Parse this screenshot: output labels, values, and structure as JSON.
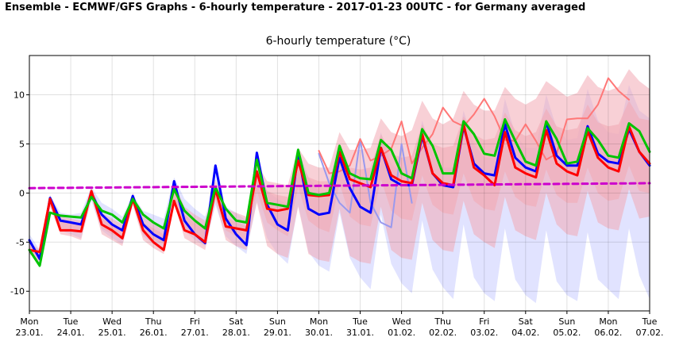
{
  "page": {
    "title": "Ensemble - ECMWF/GFS Graphs - 6-hourly temperature - 2017-01-23 00UTC - for Germany averaged"
  },
  "colors": {
    "gfs_spread": "#c8ccff",
    "ecmwf_spread": "#f2aab4",
    "gfs_main": "#0000ff",
    "ecmwf_main": "#ff0000",
    "green": "#00c400",
    "climate": "#cc00cc",
    "gfs_light": "#9999ee",
    "ecmwf_light": "#ff7777"
  },
  "chart_data": {
    "type": "line",
    "title": "6-hourly temperature (°C)",
    "xlabel": "",
    "ylabel": "",
    "xlim": [
      0,
      60
    ],
    "ylim": [
      -12,
      14
    ],
    "yticks": [
      -10,
      -5,
      0,
      5,
      10
    ],
    "grid": true,
    "legend": "none",
    "xtick_labels": [
      {
        "day": "Mon",
        "date": "23.01."
      },
      {
        "day": "Tue",
        "date": "24.01."
      },
      {
        "day": "Wed",
        "date": "25.01."
      },
      {
        "day": "Thu",
        "date": "26.01."
      },
      {
        "day": "Fri",
        "date": "27.01."
      },
      {
        "day": "Sat",
        "date": "28.01."
      },
      {
        "day": "Sun",
        "date": "29.01."
      },
      {
        "day": "Mon",
        "date": "30.01."
      },
      {
        "day": "Tue",
        "date": "31.01."
      },
      {
        "day": "Wed",
        "date": "01.02."
      },
      {
        "day": "Thu",
        "date": "02.02."
      },
      {
        "day": "Fri",
        "date": "03.02."
      },
      {
        "day": "Sat",
        "date": "04.02."
      },
      {
        "day": "Sun",
        "date": "05.02."
      },
      {
        "day": "Mon",
        "date": "06.02."
      },
      {
        "day": "Tue",
        "date": "07.02."
      }
    ],
    "bands": [
      {
        "id": "gfs-outer-spread",
        "color_key": "gfs_spread",
        "opacity": 0.55,
        "x_start": 0,
        "upper": [
          -4.2,
          -5.8,
          -0.2,
          -2.0,
          -2.2,
          -2.0,
          0.6,
          -1.0,
          -1.6,
          -2.4,
          -0.2,
          -1.8,
          -2.2,
          -2.6,
          1.6,
          -0.6,
          -1.6,
          -2.4,
          0.7,
          -1.4,
          -2.0,
          -2.8,
          3.2,
          0.2,
          -0.6,
          -1.2,
          4.6,
          1.6,
          0.2,
          -0.2,
          5.0,
          2.0,
          1.0,
          0.6,
          6.2,
          3.0,
          2.0,
          1.8,
          7.4,
          4.0,
          2.6,
          2.6,
          8.4,
          5.0,
          3.6,
          3.6,
          9.6,
          6.0,
          4.6,
          4.6,
          10.0,
          6.6,
          5.4,
          5.6,
          10.6,
          7.4,
          6.2,
          6.0,
          11.0,
          8.4,
          7.6
        ],
        "lower": [
          -5.6,
          -7.6,
          -1.2,
          -3.8,
          -4.2,
          -4.6,
          -0.8,
          -3.8,
          -4.6,
          -5.2,
          -1.2,
          -4.4,
          -5.2,
          -5.8,
          -0.8,
          -3.8,
          -4.8,
          -5.4,
          -1.2,
          -4.4,
          -5.4,
          -6.2,
          -0.8,
          -4.6,
          -6.2,
          -7.2,
          -1.2,
          -6.0,
          -7.4,
          -8.0,
          -2.0,
          -6.6,
          -8.6,
          -9.8,
          -2.2,
          -7.2,
          -9.2,
          -10.2,
          -2.8,
          -7.8,
          -9.6,
          -10.8,
          -3.2,
          -8.6,
          -10.2,
          -11.0,
          -3.6,
          -8.8,
          -10.4,
          -11.2,
          -3.8,
          -9.0,
          -10.4,
          -11.0,
          -4.0,
          -8.8,
          -9.8,
          -10.8,
          -3.6,
          -8.4,
          -10.8
        ]
      },
      {
        "id": "ecmwf-outer-spread",
        "color_key": "ecmwf_spread",
        "opacity": 0.55,
        "x_start": 0,
        "upper": [
          -5.0,
          -5.8,
          -0.2,
          -2.4,
          -2.6,
          -2.8,
          0.6,
          -2.0,
          -2.6,
          -3.2,
          0.0,
          -2.4,
          -3.0,
          -3.6,
          1.0,
          -1.4,
          -2.2,
          -2.8,
          1.4,
          -1.6,
          -2.0,
          -2.4,
          3.0,
          1.2,
          1.0,
          0.8,
          4.6,
          3.0,
          2.6,
          2.6,
          6.2,
          4.4,
          4.4,
          4.6,
          7.6,
          6.2,
          5.8,
          6.4,
          9.4,
          7.6,
          7.0,
          7.6,
          10.4,
          9.0,
          8.4,
          8.4,
          10.8,
          9.6,
          9.0,
          9.6,
          11.4,
          10.6,
          9.8,
          10.2,
          12.0,
          10.8,
          10.4,
          10.8,
          12.6,
          11.4,
          10.6
        ],
        "lower": [
          -6.2,
          -7.0,
          -1.4,
          -4.2,
          -4.4,
          -4.8,
          -0.4,
          -4.2,
          -4.8,
          -5.4,
          -1.2,
          -4.8,
          -5.6,
          -6.2,
          -1.0,
          -4.6,
          -5.2,
          -5.8,
          -0.8,
          -4.8,
          -5.4,
          -5.8,
          -1.0,
          -5.4,
          -6.2,
          -6.6,
          -1.4,
          -6.2,
          -6.8,
          -7.0,
          -1.6,
          -6.4,
          -7.0,
          -7.2,
          -1.4,
          -5.8,
          -6.6,
          -6.8,
          -1.0,
          -4.8,
          -5.8,
          -6.0,
          -0.8,
          -4.2,
          -5.0,
          -5.6,
          -0.4,
          -3.8,
          -4.4,
          -4.8,
          0.0,
          -3.2,
          -4.2,
          -4.4,
          0.2,
          -3.0,
          -3.6,
          -3.8,
          0.4,
          -2.6,
          -2.4
        ]
      },
      {
        "id": "ecmwf-inner-spread",
        "color_key": "ecmwf_spread",
        "opacity": 0.6,
        "x_start": 0,
        "upper": [
          -5.4,
          -6.2,
          -0.6,
          -2.8,
          -3.0,
          -3.2,
          0.3,
          -2.6,
          -3.2,
          -3.8,
          -0.4,
          -3.0,
          -3.6,
          -4.2,
          0.4,
          -2.2,
          -3.0,
          -3.6,
          0.6,
          -2.4,
          -3.0,
          -3.4,
          2.4,
          0.2,
          -0.2,
          -0.4,
          3.6,
          1.6,
          1.2,
          1.2,
          4.8,
          2.6,
          2.4,
          2.6,
          6.0,
          4.0,
          3.6,
          3.8,
          7.0,
          5.0,
          4.6,
          4.8,
          7.8,
          6.0,
          5.4,
          5.6,
          8.2,
          6.4,
          5.8,
          6.2,
          8.6,
          6.8,
          6.4,
          6.6,
          9.0,
          7.2,
          6.8,
          7.0,
          9.4,
          7.6,
          7.4
        ],
        "lower": [
          -5.8,
          -6.6,
          -1.0,
          -3.6,
          -3.8,
          -4.0,
          -0.2,
          -3.6,
          -4.2,
          -4.6,
          -0.8,
          -4.2,
          -4.8,
          -5.2,
          -0.6,
          -3.8,
          -4.4,
          -4.8,
          -0.4,
          -3.8,
          -4.4,
          -4.8,
          0.2,
          -3.0,
          -3.8,
          -4.4,
          0.6,
          -2.8,
          -3.6,
          -4.0,
          1.0,
          -2.4,
          -3.2,
          -3.4,
          1.4,
          -1.8,
          -2.6,
          -2.8,
          1.8,
          -1.2,
          -2.0,
          -2.2,
          2.0,
          -0.8,
          -1.6,
          -1.8,
          2.2,
          -0.4,
          -1.2,
          -1.4,
          2.4,
          -0.2,
          -1.0,
          -1.0,
          2.6,
          0.0,
          -0.8,
          -0.6,
          2.8,
          0.2,
          0.0
        ]
      }
    ],
    "series": [
      {
        "id": "gfs-control-light",
        "color_key": "gfs_light",
        "width": 2,
        "x_start": 28,
        "values": [
          4.0,
          1.0,
          -1.0,
          -2.0,
          5.5,
          -1.0,
          -3.0,
          -3.5,
          5.0,
          -1.0
        ]
      },
      {
        "id": "ecmwf-control-light",
        "color_key": "ecmwf_light",
        "width": 2,
        "x_start": 28,
        "values": [
          4.3,
          2.0,
          2.2,
          2.8,
          5.5,
          3.3,
          3.8,
          4.5,
          7.3,
          3.0,
          4.6,
          6.0,
          8.7,
          7.3,
          6.8,
          8.0,
          9.6,
          7.8,
          5.4,
          5.3,
          7.0,
          5.3,
          3.4,
          4.0,
          7.5,
          7.6,
          7.6,
          9.0,
          11.7,
          10.4,
          9.5
        ]
      },
      {
        "id": "gfs-main",
        "color_key": "gfs_main",
        "width": 3,
        "x_start": 0,
        "values": [
          -4.8,
          -6.7,
          -0.5,
          -2.8,
          -3.0,
          -3.2,
          0.0,
          -2.2,
          -3.2,
          -3.8,
          -0.3,
          -3.2,
          -4.2,
          -4.8,
          1.2,
          -2.8,
          -4.2,
          -5.1,
          2.8,
          -2.6,
          -4.2,
          -5.3,
          4.1,
          -1.2,
          -3.2,
          -3.8,
          4.0,
          -1.6,
          -2.2,
          -2.0,
          3.6,
          0.5,
          -1.4,
          -2.0,
          4.6,
          1.4,
          0.8,
          0.8,
          5.8,
          2.0,
          0.8,
          0.6,
          6.8,
          3.0,
          2.0,
          1.8,
          7.0,
          3.6,
          2.6,
          2.2,
          7.2,
          3.8,
          2.8,
          2.8,
          6.8,
          4.0,
          3.2,
          3.0,
          6.5,
          4.2,
          2.8
        ]
      },
      {
        "id": "ecmwf-main",
        "color_key": "ecmwf_main",
        "width": 3,
        "x_start": 0,
        "values": [
          -5.8,
          -6.0,
          -0.6,
          -3.8,
          -3.8,
          -3.9,
          0.2,
          -3.2,
          -3.8,
          -4.6,
          -0.6,
          -3.8,
          -5.0,
          -5.8,
          -0.8,
          -3.8,
          -4.2,
          -5.0,
          0.4,
          -3.4,
          -3.6,
          -3.8,
          2.2,
          -1.6,
          -1.8,
          -1.6,
          3.3,
          -0.2,
          -0.3,
          -0.2,
          4.2,
          1.4,
          1.0,
          0.6,
          4.6,
          1.8,
          1.2,
          1.0,
          6.0,
          2.0,
          1.0,
          0.8,
          7.0,
          2.6,
          1.8,
          0.8,
          6.2,
          2.6,
          2.0,
          1.6,
          6.4,
          3.0,
          2.2,
          1.8,
          6.3,
          3.6,
          2.6,
          2.2,
          6.8,
          4.2,
          3.0
        ]
      },
      {
        "id": "green-line",
        "color_key": "green",
        "width": 3,
        "x_start": 0,
        "values": [
          -5.8,
          -7.4,
          -2.0,
          -2.3,
          -2.4,
          -2.5,
          -0.4,
          -1.8,
          -2.2,
          -3.0,
          -0.6,
          -2.2,
          -3.0,
          -3.6,
          0.4,
          -1.8,
          -2.8,
          -3.6,
          0.6,
          -1.6,
          -2.8,
          -3.0,
          3.4,
          -1.0,
          -1.2,
          -1.4,
          4.4,
          0.0,
          -0.2,
          0.0,
          4.8,
          2.0,
          1.5,
          1.4,
          5.4,
          4.4,
          2.0,
          1.5,
          6.5,
          4.8,
          2.0,
          2.0,
          7.3,
          6.0,
          4.0,
          3.8,
          7.5,
          5.3,
          3.2,
          2.8,
          7.3,
          5.5,
          3.0,
          3.2,
          6.6,
          5.4,
          3.8,
          3.6,
          7.1,
          6.3,
          4.2
        ]
      },
      {
        "id": "climate-line",
        "color_key": "climate",
        "width": 3,
        "dashed": true,
        "x_start": 0,
        "x_end": 60,
        "values_linear": [
          0.5,
          1.0
        ]
      }
    ]
  }
}
